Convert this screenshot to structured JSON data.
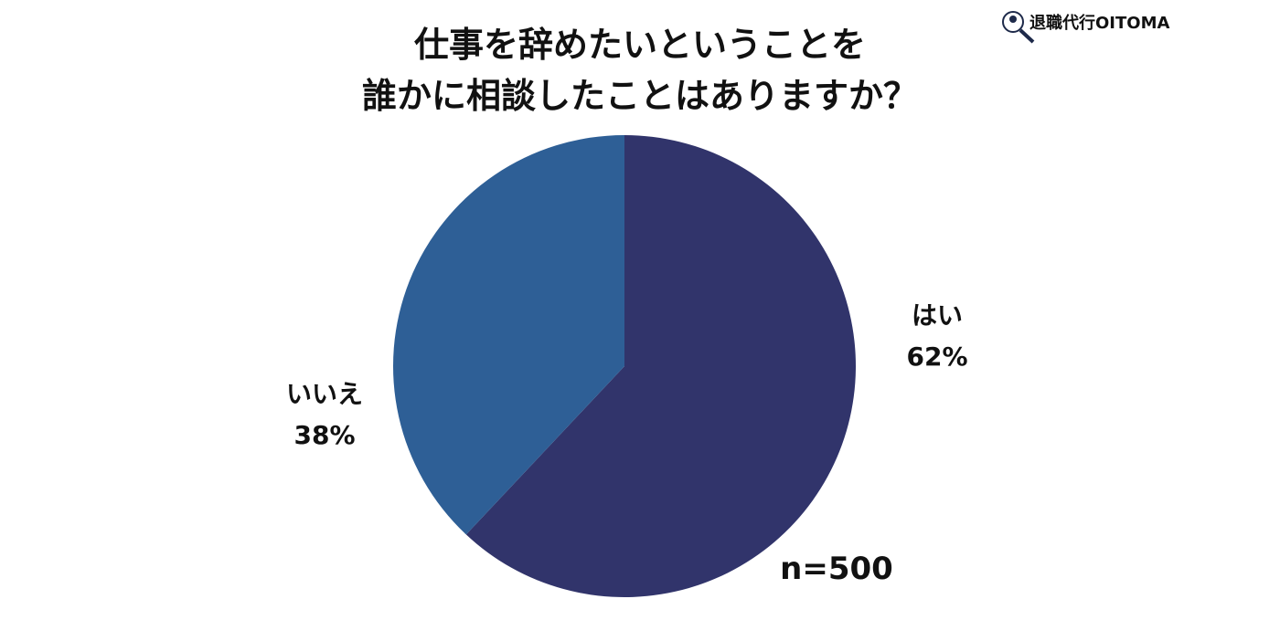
{
  "chart_data": {
    "type": "pie",
    "title": [
      "仕事を辞めたいということを",
      "誰かに相談したことはありますか？"
    ],
    "brand": "退職代行OITOMA",
    "annotation": "n=500",
    "categories": [
      "はい",
      "いいえ"
    ],
    "values": [
      62,
      38
    ],
    "value_labels": [
      "62%",
      "38%"
    ],
    "colors": [
      "#31346b",
      "#2e5f96"
    ]
  }
}
